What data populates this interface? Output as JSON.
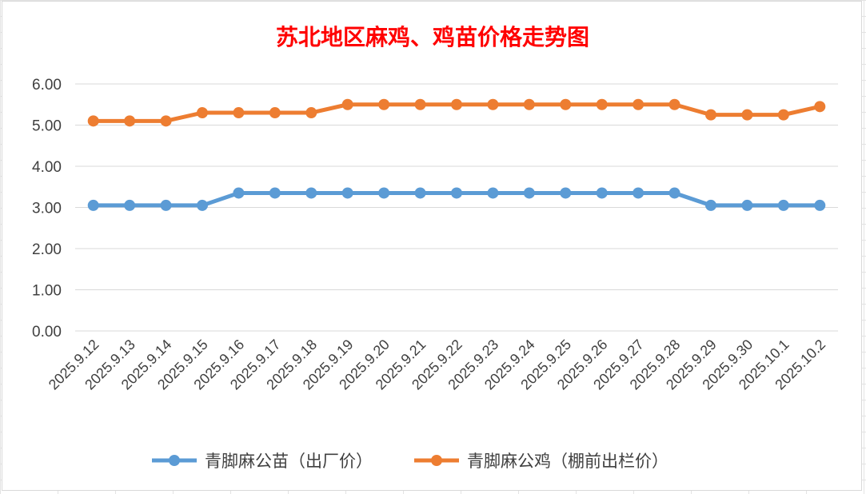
{
  "chart_data": {
    "type": "line",
    "title": "苏北地区麻鸡、鸡苗价格走势图",
    "categories": [
      "2025.9.12",
      "2025.9.13",
      "2025.9.14",
      "2025.9.15",
      "2025.9.16",
      "2025.9.17",
      "2025.9.18",
      "2025.9.19",
      "2025.9.20",
      "2025.9.21",
      "2025.9.22",
      "2025.9.23",
      "2025.9.24",
      "2025.9.25",
      "2025.9.26",
      "2025.9.27",
      "2025.9.28",
      "2025.9.29",
      "2025.9.30",
      "2025.10.1",
      "2025.10.2"
    ],
    "series": [
      {
        "name": "青脚麻公苗（出厂价）",
        "color": "#5b9bd5",
        "values": [
          3.05,
          3.05,
          3.05,
          3.05,
          3.35,
          3.35,
          3.35,
          3.35,
          3.35,
          3.35,
          3.35,
          3.35,
          3.35,
          3.35,
          3.35,
          3.35,
          3.35,
          3.05,
          3.05,
          3.05,
          3.05
        ]
      },
      {
        "name": "青脚麻公鸡（棚前出栏价）",
        "color": "#ed7d31",
        "values": [
          5.1,
          5.1,
          5.1,
          5.3,
          5.3,
          5.3,
          5.3,
          5.5,
          5.5,
          5.5,
          5.5,
          5.5,
          5.5,
          5.5,
          5.5,
          5.5,
          5.5,
          5.25,
          5.25,
          5.25,
          5.45
        ]
      }
    ],
    "ylim": [
      0,
      6
    ],
    "yticks": [
      "0.00",
      "1.00",
      "2.00",
      "3.00",
      "4.00",
      "5.00",
      "6.00"
    ],
    "grid": true,
    "legend": "bottom"
  }
}
